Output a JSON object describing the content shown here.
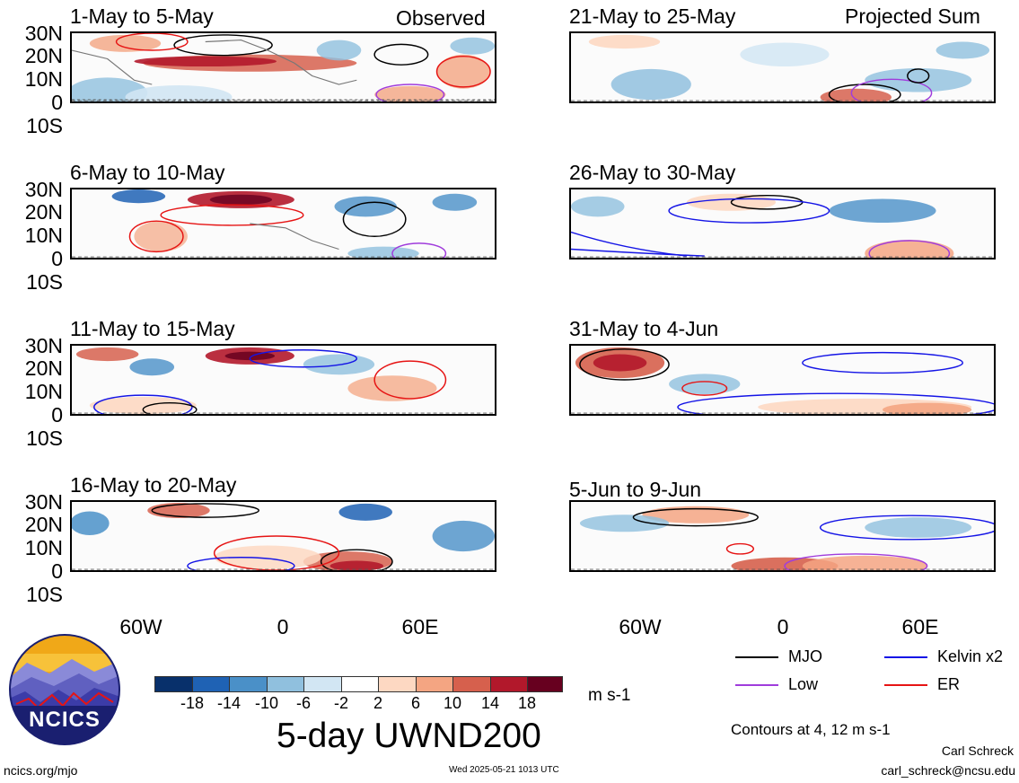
{
  "header": {
    "left_label": "Observed",
    "right_label": "Projected Sum"
  },
  "panels": {
    "left": [
      {
        "title": "1-May to 5-May"
      },
      {
        "title": "6-May to 10-May"
      },
      {
        "title": "11-May to 15-May"
      },
      {
        "title": "16-May to 20-May"
      }
    ],
    "right": [
      {
        "title": "21-May to 25-May"
      },
      {
        "title": "26-May to 30-May"
      },
      {
        "title": "31-May to 4-Jun"
      },
      {
        "title": "5-Jun to 9-Jun"
      }
    ]
  },
  "axes": {
    "lat_labels": [
      "30N",
      "20N",
      "10N",
      "0",
      "10S"
    ],
    "lon_labels": [
      "60W",
      "0",
      "60E"
    ]
  },
  "legend": {
    "items": [
      {
        "label": "MJO",
        "color": "#000000"
      },
      {
        "label": "Kelvin x2",
        "color": "#1414e6"
      },
      {
        "label": "Low",
        "color": "#a03cdc"
      },
      {
        "label": "ER",
        "color": "#e61414"
      }
    ],
    "contours_note": "Contours at 4, 12 m s-1"
  },
  "colorbar": {
    "tick_labels": [
      "-18",
      "-14",
      "-10",
      "-6",
      "-2",
      "2",
      "6",
      "10",
      "14",
      "18"
    ],
    "colors": [
      "#08306b",
      "#1f62b4",
      "#4a90c8",
      "#90c0de",
      "#d2e6f3",
      "#ffffff",
      "#fdd8c2",
      "#f4a582",
      "#d6604d",
      "#b2182b",
      "#67001f"
    ],
    "units": "m s-1"
  },
  "title": "5-day UWND200",
  "logo_text": "NCICS",
  "footer": {
    "left": "ncics.org/mjo",
    "center": "Wed 2025-05-21 1013 UTC",
    "author": "Carl Schreck",
    "email": "carl_schreck@ncsu.edu"
  }
}
